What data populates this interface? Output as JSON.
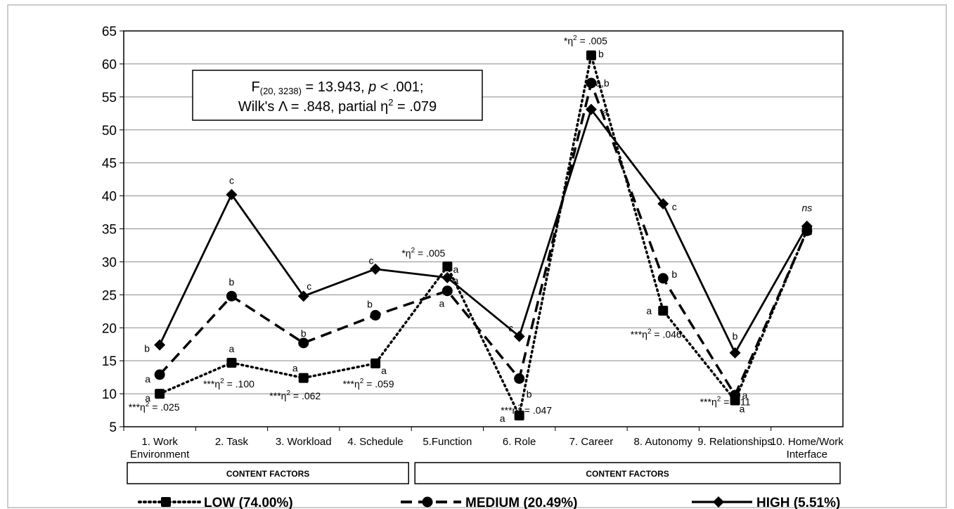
{
  "chart_data": {
    "type": "line",
    "ylim": [
      5,
      65
    ],
    "yticks": [
      5,
      10,
      15,
      20,
      25,
      30,
      35,
      40,
      45,
      50,
      55,
      60,
      65
    ],
    "grid": true,
    "categories": [
      [
        "1. Work",
        "Environment"
      ],
      [
        "2. Task"
      ],
      [
        "3. Workload"
      ],
      [
        "4. Schedule"
      ],
      [
        "5.Function"
      ],
      [
        "6. Role"
      ],
      [
        "7. Career"
      ],
      [
        "8. Autonomy"
      ],
      [
        "9. Relationships"
      ],
      [
        "10. Home/Work",
        "Interface"
      ]
    ],
    "groups": [
      {
        "label": "CONTENT FACTORS",
        "from": 0,
        "to": 3
      },
      {
        "label": "CONTENT FACTORS",
        "from": 4,
        "to": 9
      }
    ],
    "series": [
      {
        "name": "LOW (74.00%)",
        "style": "dotted",
        "marker": "square",
        "values": [
          10.0,
          14.7,
          12.4,
          14.6,
          29.3,
          6.7,
          61.3,
          22.6,
          9.0,
          34.8
        ]
      },
      {
        "name": "MEDIUM (20.49%)",
        "style": "dashed",
        "marker": "circle",
        "values": [
          12.9,
          24.8,
          17.7,
          21.9,
          25.6,
          12.3,
          57.1,
          27.5,
          9.8,
          34.7
        ]
      },
      {
        "name": "HIGH (5.51%)",
        "style": "solid",
        "marker": "diamond",
        "values": [
          17.4,
          40.2,
          24.8,
          28.9,
          27.6,
          18.7,
          53.1,
          38.8,
          16.2,
          35.4
        ]
      }
    ],
    "stats_box": {
      "line1_prefix": "F",
      "line1_sub": "(20, 3238)",
      "line1_mid": " = 13.943, ",
      "line1_p": "p",
      "line1_end": " < .001;",
      "line2_pre": "Wilk's Λ = .848, partial η",
      "line2_sup": "2",
      "line2_end": " = .079"
    },
    "letters": [
      {
        "cat": 0,
        "y": 17.4,
        "text": "b"
      },
      {
        "cat": 0,
        "y": 12.9,
        "text": "a"
      },
      {
        "cat": 0,
        "y": 10.0,
        "text": "a"
      },
      {
        "cat": 1,
        "y": 40.2,
        "text": "c"
      },
      {
        "cat": 1,
        "y": 24.8,
        "text": "b"
      },
      {
        "cat": 1,
        "y": 14.7,
        "text": "a"
      },
      {
        "cat": 2,
        "y": 24.8,
        "text": "c"
      },
      {
        "cat": 2,
        "y": 17.7,
        "text": "b"
      },
      {
        "cat": 2,
        "y": 12.4,
        "text": "a"
      },
      {
        "cat": 3,
        "y": 28.9,
        "text": "c"
      },
      {
        "cat": 3,
        "y": 21.9,
        "text": "b"
      },
      {
        "cat": 3,
        "y": 14.6,
        "text": "a"
      },
      {
        "cat": 4,
        "y": 29.3,
        "text": "a"
      },
      {
        "cat": 4,
        "y": 27.6,
        "text": "a"
      },
      {
        "cat": 4,
        "y": 25.6,
        "text": "a"
      },
      {
        "cat": 5,
        "y": 18.7,
        "text": "c"
      },
      {
        "cat": 5,
        "y": 12.3,
        "text": "b"
      },
      {
        "cat": 5,
        "y": 6.7,
        "text": "a"
      },
      {
        "cat": 6,
        "y": 61.3,
        "text": "b"
      },
      {
        "cat": 6,
        "y": 57.1,
        "text": "a,b"
      },
      {
        "cat": 6,
        "y": 53.1,
        "text": "a"
      },
      {
        "cat": 7,
        "y": 38.8,
        "text": "c"
      },
      {
        "cat": 7,
        "y": 27.5,
        "text": "b"
      },
      {
        "cat": 7,
        "y": 22.6,
        "text": "a"
      },
      {
        "cat": 8,
        "y": 16.2,
        "text": "b"
      },
      {
        "cat": 8,
        "y": 9.8,
        "text": "a"
      },
      {
        "cat": 8,
        "y": 9.0,
        "text": "a"
      },
      {
        "cat": 9,
        "y": 35.4,
        "text": "ns"
      }
    ],
    "effect_sizes": [
      {
        "cat": 0,
        "y": 8.0,
        "stars": "***",
        "value": " = .025"
      },
      {
        "cat": 1,
        "y": 11.5,
        "stars": "***",
        "value": " = .100"
      },
      {
        "cat": 2,
        "y": 9.7,
        "stars": "***",
        "value": " = .062"
      },
      {
        "cat": 3,
        "y": 11.5,
        "stars": "***",
        "value": " = .059"
      },
      {
        "cat": 4,
        "y": 31.3,
        "stars": "*",
        "value": " = .005"
      },
      {
        "cat": 5,
        "y": 7.5,
        "stars": "***",
        "value": " = .047"
      },
      {
        "cat": 6,
        "y": 63.5,
        "stars": "*",
        "value": " = .005"
      },
      {
        "cat": 7,
        "y": 19.0,
        "stars": "***",
        "value": " = .046"
      },
      {
        "cat": 8,
        "y": 8.8,
        "stars": "***",
        "value": " = .011"
      }
    ]
  }
}
